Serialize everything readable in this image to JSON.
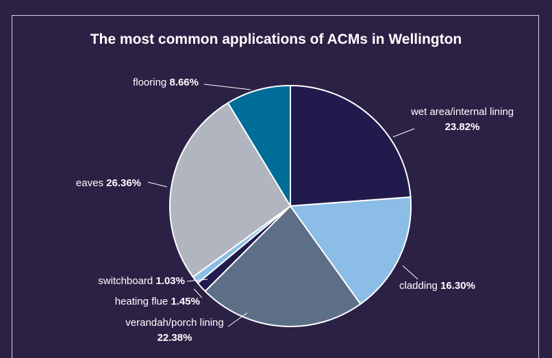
{
  "chart_data": {
    "type": "pie",
    "title": "The most common applications of ACMs in Wellington",
    "categories": [
      "wet area/internal lining",
      "cladding",
      "verandah/porch lining",
      "heating flue",
      "switchboard",
      "eaves",
      "flooring"
    ],
    "values": [
      23.82,
      16.3,
      22.38,
      1.45,
      1.03,
      26.36,
      8.66
    ],
    "value_labels": [
      "23.82%",
      "16.30%",
      "22.38%",
      "1.45%",
      "1.03%",
      "26.36%",
      "8.66%"
    ],
    "colors": [
      "#211b4d",
      "#8bbde6",
      "#5d6f87",
      "#211b4d",
      "#8bbde6",
      "#b1b5bf",
      "#006c98"
    ]
  }
}
